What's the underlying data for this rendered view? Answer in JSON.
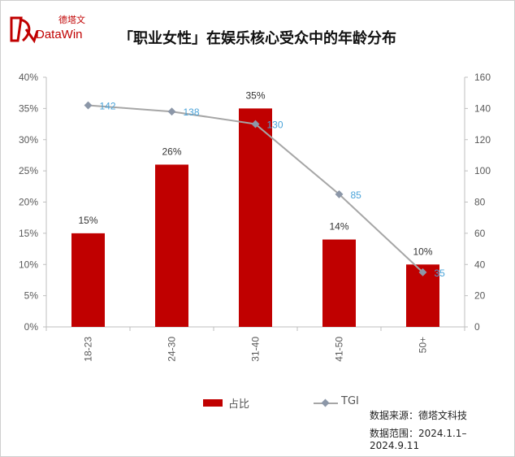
{
  "header": {
    "logo_cn": "德塔文",
    "logo_en": "DataWin",
    "title": "「职业女性」在娱乐核心受众中的年龄分布"
  },
  "colors": {
    "bar": "#c00000",
    "line": "#a6a6a6",
    "marker": "#8c97a8",
    "tgi_label": "#4aa3d9",
    "accent": "#c00000"
  },
  "chart_data": {
    "type": "bar",
    "categories": [
      "18-23",
      "24-30",
      "31-40",
      "41-50",
      "50+"
    ],
    "series": [
      {
        "name": "占比",
        "type": "bar",
        "axis": "left",
        "values": [
          15,
          26,
          35,
          14,
          10
        ],
        "labels": [
          "15%",
          "26%",
          "35%",
          "14%",
          "10%"
        ]
      },
      {
        "name": "TGI",
        "type": "line",
        "axis": "right",
        "values": [
          142,
          138,
          130,
          85,
          35
        ],
        "labels": [
          "142",
          "138",
          "130",
          "85",
          "35"
        ]
      }
    ],
    "y_left": {
      "ylim": [
        0,
        40
      ],
      "ticks": [
        "0%",
        "5%",
        "10%",
        "15%",
        "20%",
        "25%",
        "30%",
        "35%",
        "40%"
      ]
    },
    "y_right": {
      "ylim": [
        0,
        160
      ],
      "ticks": [
        "0",
        "20",
        "40",
        "60",
        "80",
        "100",
        "120",
        "140",
        "160"
      ]
    },
    "grid": false,
    "legend_position": "bottom"
  },
  "legend": {
    "bar_label": "占比",
    "line_label": "TGI"
  },
  "source": {
    "line1": "数据来源：德塔文科技",
    "line2": "数据范围：2024.1.1–2024.9.11"
  }
}
